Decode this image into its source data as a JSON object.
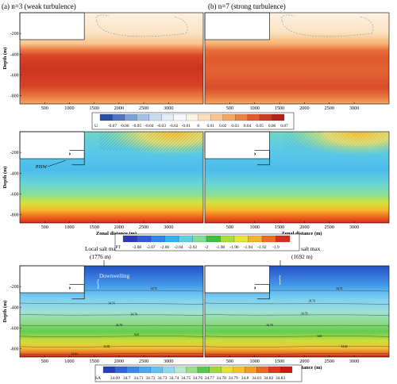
{
  "labels": {
    "panel_a_title": "(a) n=3 (weak turbulence)",
    "panel_b_title": "(b) n=7 (strong turbulence)",
    "y_axis_label": "Depth (m)",
    "x_axis_label": "Zonal distance (m)",
    "pisw_label": "PISW",
    "downwelling_label": "Downwelling",
    "salt_max_a_line1": "Local salt max",
    "salt_max_a_line2": "(1776 m)",
    "salt_max_b_line1": "Local salt max",
    "salt_max_b_line2": "(1692 m)"
  },
  "colorbars": {
    "u": {
      "name": "U",
      "ticks": [
        "-0.07",
        "-0.06",
        "-0.05",
        "-0.04",
        "-0.03",
        "-0.02",
        "-0.01",
        "0",
        "0.01",
        "0.02",
        "0.03",
        "0.04",
        "0.05",
        "0.06",
        "0.07"
      ],
      "colors": [
        "#2c4ea0",
        "#4f76bf",
        "#7da2d6",
        "#a7c2e3",
        "#c9dbee",
        "#e5eef7",
        "#f7f9fc",
        "#fdf3e6",
        "#fbe0bd",
        "#f8c88f",
        "#f4a85f",
        "#ec8240",
        "#e05b2c",
        "#cc3a21",
        "#b22419"
      ]
    },
    "pt": {
      "name": "PT",
      "ticks": [
        "-2.08",
        "-2.07",
        "-2.06",
        "-2.04",
        "-2.02",
        "-2",
        "-1.98",
        "-1.96",
        "-1.94",
        "-1.92",
        "-1.9"
      ],
      "colors": [
        "#2b3bb8",
        "#3557d8",
        "#2f86e8",
        "#36b2ef",
        "#5fd0e6",
        "#7fdc9a",
        "#3fbf3f",
        "#a9dc3c",
        "#e8e530",
        "#f5b72a",
        "#ee6b1f",
        "#d92a1a"
      ]
    },
    "sa": {
      "name": "SA",
      "ticks": [
        "34.69",
        "34.7",
        "34.71",
        "34.72",
        "34.73",
        "34.74",
        "34.75",
        "34.76",
        "34.77",
        "34.78",
        "34.79",
        "34.8",
        "34.81",
        "34.82",
        "34.83"
      ],
      "colors": [
        "#2442b8",
        "#2f63d8",
        "#3a86e6",
        "#4aa6ee",
        "#64c2f0",
        "#8fd8ee",
        "#b6e8d2",
        "#9bde8a",
        "#56c850",
        "#9ed63e",
        "#dfe13a",
        "#f3c233",
        "#f29a2a",
        "#eb6a22",
        "#d9381c",
        "#c21e17"
      ]
    }
  },
  "chart_data": [
    {
      "type": "heatmap",
      "panel": "(a) U",
      "variable": "U",
      "xlabel": "",
      "ylabel": "Depth (m)",
      "x_ticks": [
        500,
        1000,
        1500,
        2000,
        2500,
        3000
      ],
      "y_ticks": [
        -200,
        -400,
        -600,
        -800
      ],
      "xlim": [
        0,
        3700
      ],
      "ylim": [
        -880,
        0
      ],
      "ice_shelf": {
        "front_x": 1300,
        "draft_depth": -260
      },
      "field_summary": {
        "mid_depth_band": [
          -430,
          -780
        ],
        "mid_depth_value": 0.06,
        "surface_circulation": true
      }
    },
    {
      "type": "heatmap",
      "panel": "(b) U",
      "variable": "U",
      "xlabel": "",
      "ylabel": "",
      "x_ticks": [
        500,
        1000,
        1500,
        2000,
        2500,
        3000
      ],
      "y_ticks": [
        -200,
        -400,
        -600,
        -800
      ],
      "xlim": [
        0,
        3700
      ],
      "ylim": [
        -880,
        0
      ],
      "ice_shelf": {
        "front_x": 1300,
        "draft_depth": -260
      },
      "field_summary": {
        "mid_depth_band": [
          -430,
          -780
        ],
        "mid_depth_value": 0.05,
        "surface_circulation": true
      }
    },
    {
      "type": "heatmap",
      "panel": "(a) PT",
      "variable": "PT",
      "xlabel": "Zonal distance (m)",
      "ylabel": "Depth (m)",
      "x_ticks": [
        500,
        1000,
        1500,
        2000,
        2500,
        3000
      ],
      "y_ticks": [
        -200,
        -400,
        -600,
        -800
      ],
      "xlim": [
        0,
        3700
      ],
      "ylim": [
        -880,
        0
      ]
    },
    {
      "type": "heatmap",
      "panel": "(b) PT",
      "variable": "PT",
      "xlabel": "Zonal distance (m)",
      "ylabel": "",
      "x_ticks": [
        500,
        1000,
        1500,
        2000,
        2500,
        3000
      ],
      "y_ticks": [
        -200,
        -400,
        -600,
        -800
      ],
      "xlim": [
        0,
        3700
      ],
      "ylim": [
        -880,
        0
      ]
    },
    {
      "type": "heatmap",
      "panel": "(a) SA",
      "variable": "SA",
      "xlabel": "",
      "ylabel": "Depth (m)",
      "x_ticks": [
        500,
        1000,
        1500,
        2000,
        2500,
        3000
      ],
      "y_ticks": [
        -200,
        -400,
        -600,
        -800
      ],
      "xlim": [
        0,
        3700
      ],
      "ylim": [
        -880,
        0
      ],
      "contour_labels": [
        {
          "text": "34.72",
          "x": 2700,
          "y": -230
        },
        {
          "text": "34.74",
          "x": 1850,
          "y": -370
        },
        {
          "text": "34.76",
          "x": 2300,
          "y": -480
        },
        {
          "text": "34.78",
          "x": 2000,
          "y": -580
        },
        {
          "text": "34.8",
          "x": 2350,
          "y": -675
        },
        {
          "text": "34.82",
          "x": 1750,
          "y": -790
        },
        {
          "text": "34.84",
          "x": 1100,
          "y": -860
        }
      ]
    },
    {
      "type": "heatmap",
      "panel": "(b) SA",
      "variable": "SA",
      "xlabel": "Zonal distance (m)",
      "ylabel": "",
      "x_ticks": [
        500,
        1000,
        1500,
        2000,
        2500,
        3000
      ],
      "y_ticks": [
        -200,
        -400,
        -600,
        -800
      ],
      "xlim": [
        0,
        3700
      ],
      "ylim": [
        -880,
        0
      ],
      "contour_labels": [
        {
          "text": "34.72",
          "x": 2700,
          "y": -230
        },
        {
          "text": "34.74",
          "x": 2150,
          "y": -350
        },
        {
          "text": "34.76",
          "x": 2000,
          "y": -470
        },
        {
          "text": "34.78",
          "x": 1300,
          "y": -580
        },
        {
          "text": "34.8",
          "x": 2300,
          "y": -690
        },
        {
          "text": "34.82",
          "x": 2800,
          "y": -790
        }
      ]
    }
  ]
}
